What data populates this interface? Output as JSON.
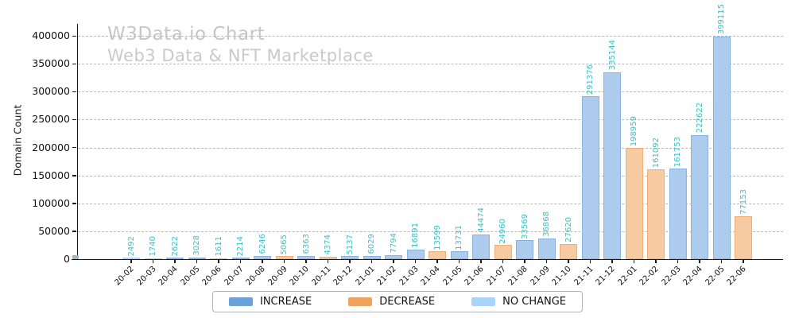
{
  "window": {
    "title": "W3Data.io Chart",
    "subtitle": "Web3 Data & NFT Marketplace"
  },
  "chart_data": {
    "type": "bar",
    "title": "W3Data.io Chart",
    "subtitle": "Web3 Data & NFT Marketplace",
    "xlabel": "",
    "ylabel": "Domain Count",
    "ylim": [
      0,
      400000
    ],
    "yticks": [
      0,
      50000,
      100000,
      150000,
      200000,
      250000,
      300000,
      350000,
      400000
    ],
    "grid": "horizontal-dashed",
    "legend_position": "bottom-center",
    "categories": [
      "20-02",
      "20-03",
      "20-04",
      "20-05",
      "20-06",
      "20-07",
      "20-08",
      "20-09",
      "20-10",
      "20-11",
      "20-12",
      "21-01",
      "21-02",
      "21-03",
      "21-04",
      "21-05",
      "21-06",
      "21-07",
      "21-08",
      "21-09",
      "21-10",
      "21-11",
      "21-12",
      "22-01",
      "22-02",
      "22-03",
      "22-04",
      "22-05",
      "22-06"
    ],
    "values": [
      2492,
      1740,
      2622,
      3028,
      1611,
      2214,
      6246,
      5065,
      6363,
      4374,
      5137,
      6029,
      7794,
      16891,
      13599,
      13731,
      44474,
      24960,
      33569,
      36868,
      27620,
      291376,
      335144,
      198959,
      161092,
      161753,
      222622,
      399115,
      77153
    ],
    "bar_series": [
      "no_change",
      "decrease",
      "increase",
      "increase",
      "decrease",
      "increase",
      "increase",
      "decrease",
      "increase",
      "decrease",
      "increase",
      "increase",
      "increase",
      "increase",
      "decrease",
      "increase",
      "increase",
      "decrease",
      "increase",
      "increase",
      "decrease",
      "increase",
      "increase",
      "decrease",
      "decrease",
      "increase",
      "increase",
      "increase",
      "decrease"
    ],
    "series": [
      {
        "name": "INCREASE",
        "key": "increase",
        "color": "#6aa1d9"
      },
      {
        "name": "DECREASE",
        "key": "decrease",
        "color": "#f0a35e"
      },
      {
        "name": "NO CHANGE",
        "key": "no_change",
        "color": "#a9d3f7"
      }
    ],
    "colors": {
      "increase_fill": "#adcbec",
      "increase_edge": "#8ab2e2",
      "decrease_fill": "#f7cba1",
      "decrease_edge": "#f2ae76",
      "no_change_fill": "#cde2f8",
      "no_change_edge": "#aed5f7",
      "value_label": "#3bbfc8",
      "title_text": "#c6c6c6",
      "gridline": "#b8b8b8",
      "axis": "#1a1a1a"
    }
  }
}
